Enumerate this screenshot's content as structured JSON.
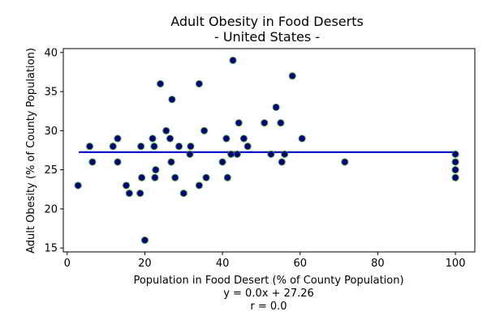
{
  "chart_data": {
    "type": "scatter",
    "title": "Adult Obesity in Food Deserts",
    "subtitle": "- United States -",
    "xlabel": "Population in Food Desert (% of County Population)",
    "ylabel": "Adult Obesity (% of County Population)",
    "regression_text": "y = 0.0x + 27.26",
    "r_text": "r = 0.0",
    "xlim": [
      -1,
      105
    ],
    "ylim": [
      14.5,
      40.5
    ],
    "xticks": [
      0,
      20,
      40,
      60,
      80,
      100
    ],
    "yticks": [
      15,
      20,
      25,
      30,
      35,
      40
    ],
    "grid": false,
    "marker_fill": "#000080",
    "marker_edge": "#2e8b2e",
    "line_color": "#0000cc",
    "regression": {
      "slope": 0.0,
      "intercept": 27.26,
      "x_range": [
        3,
        100
      ]
    },
    "points": [
      {
        "x": 2.8,
        "y": 23
      },
      {
        "x": 5.8,
        "y": 28
      },
      {
        "x": 6.5,
        "y": 26
      },
      {
        "x": 11.8,
        "y": 28
      },
      {
        "x": 13.0,
        "y": 29
      },
      {
        "x": 13.0,
        "y": 26
      },
      {
        "x": 15.2,
        "y": 23
      },
      {
        "x": 16.0,
        "y": 22
      },
      {
        "x": 18.8,
        "y": 22
      },
      {
        "x": 19.0,
        "y": 28
      },
      {
        "x": 19.2,
        "y": 24
      },
      {
        "x": 20.0,
        "y": 16
      },
      {
        "x": 22.0,
        "y": 29
      },
      {
        "x": 22.4,
        "y": 28
      },
      {
        "x": 22.6,
        "y": 24
      },
      {
        "x": 22.8,
        "y": 25
      },
      {
        "x": 24.0,
        "y": 36
      },
      {
        "x": 25.5,
        "y": 30
      },
      {
        "x": 26.5,
        "y": 29
      },
      {
        "x": 26.8,
        "y": 26
      },
      {
        "x": 27.0,
        "y": 34
      },
      {
        "x": 27.8,
        "y": 24
      },
      {
        "x": 28.8,
        "y": 28
      },
      {
        "x": 30.0,
        "y": 22
      },
      {
        "x": 31.6,
        "y": 27
      },
      {
        "x": 31.8,
        "y": 28
      },
      {
        "x": 34.0,
        "y": 36
      },
      {
        "x": 34.0,
        "y": 23
      },
      {
        "x": 35.3,
        "y": 30
      },
      {
        "x": 35.8,
        "y": 24
      },
      {
        "x": 40.0,
        "y": 26
      },
      {
        "x": 41.0,
        "y": 29
      },
      {
        "x": 41.3,
        "y": 24
      },
      {
        "x": 42.2,
        "y": 27
      },
      {
        "x": 42.7,
        "y": 39
      },
      {
        "x": 43.8,
        "y": 27
      },
      {
        "x": 44.2,
        "y": 31
      },
      {
        "x": 45.5,
        "y": 29
      },
      {
        "x": 46.5,
        "y": 28
      },
      {
        "x": 50.8,
        "y": 31
      },
      {
        "x": 52.5,
        "y": 27
      },
      {
        "x": 53.8,
        "y": 33
      },
      {
        "x": 55.0,
        "y": 31
      },
      {
        "x": 55.3,
        "y": 26
      },
      {
        "x": 56.0,
        "y": 27
      },
      {
        "x": 58.0,
        "y": 37
      },
      {
        "x": 60.5,
        "y": 29
      },
      {
        "x": 71.5,
        "y": 26
      },
      {
        "x": 100,
        "y": 27
      },
      {
        "x": 100,
        "y": 26
      },
      {
        "x": 100,
        "y": 25
      },
      {
        "x": 100,
        "y": 24
      }
    ]
  }
}
